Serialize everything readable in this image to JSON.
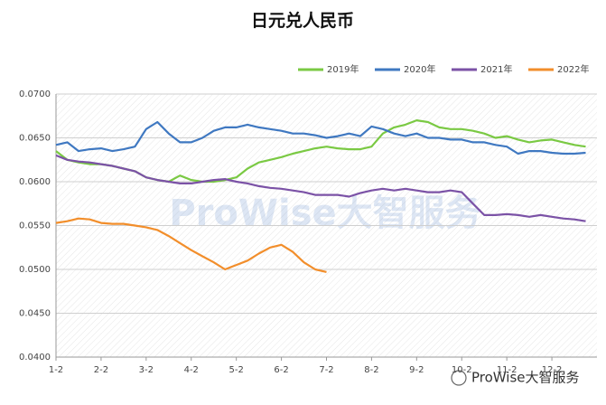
{
  "chart_data": {
    "type": "line",
    "title": "日元兑人民币",
    "categories": [
      "1-2",
      null,
      null,
      null,
      "2-2",
      null,
      null,
      null,
      "3-2",
      null,
      null,
      null,
      "4-2",
      null,
      null,
      null,
      "5-2",
      null,
      null,
      null,
      "6-2",
      null,
      null,
      null,
      "7-2",
      null,
      null,
      null,
      "8-2",
      null,
      null,
      null,
      "9-2",
      null,
      null,
      null,
      "10-2",
      null,
      null,
      null,
      "11-2",
      null,
      null,
      null,
      "12-2",
      null,
      null,
      null
    ],
    "series": [
      {
        "name": "2019年",
        "color": "#7ac943",
        "values": [
          0.0635,
          0.0625,
          0.0622,
          0.062,
          0.062,
          0.0618,
          0.0615,
          0.0612,
          0.0605,
          0.0602,
          0.06,
          0.0607,
          0.0602,
          0.06,
          0.06,
          0.0602,
          0.0605,
          0.0615,
          0.0622,
          0.0625,
          0.0628,
          0.0632,
          0.0635,
          0.0638,
          0.064,
          0.0638,
          0.0637,
          0.0637,
          0.064,
          0.0655,
          0.0662,
          0.0665,
          0.067,
          0.0668,
          0.0662,
          0.066,
          0.066,
          0.0658,
          0.0655,
          0.065,
          0.0652,
          0.0648,
          0.0645,
          0.0647,
          0.0648,
          0.0645,
          0.0642,
          0.064
        ]
      },
      {
        "name": "2020年",
        "color": "#3f78c1",
        "values": [
          0.0642,
          0.0645,
          0.0635,
          0.0637,
          0.0638,
          0.0635,
          0.0637,
          0.064,
          0.066,
          0.0668,
          0.0655,
          0.0645,
          0.0645,
          0.065,
          0.0658,
          0.0662,
          0.0662,
          0.0665,
          0.0662,
          0.066,
          0.0658,
          0.0655,
          0.0655,
          0.0653,
          0.065,
          0.0652,
          0.0655,
          0.0652,
          0.0663,
          0.066,
          0.0655,
          0.0652,
          0.0655,
          0.065,
          0.065,
          0.0648,
          0.0648,
          0.0645,
          0.0645,
          0.0642,
          0.064,
          0.0632,
          0.0635,
          0.0635,
          0.0633,
          0.0632,
          0.0632,
          0.0633
        ]
      },
      {
        "name": "2021年",
        "color": "#7b52a6",
        "values": [
          0.063,
          0.0625,
          0.0623,
          0.0622,
          0.062,
          0.0618,
          0.0615,
          0.0612,
          0.0605,
          0.0602,
          0.06,
          0.0598,
          0.0598,
          0.06,
          0.0602,
          0.0603,
          0.06,
          0.0598,
          0.0595,
          0.0593,
          0.0592,
          0.059,
          0.0588,
          0.0585,
          0.0585,
          0.0585,
          0.0583,
          0.0587,
          0.059,
          0.0592,
          0.059,
          0.0592,
          0.059,
          0.0588,
          0.0588,
          0.059,
          0.0588,
          0.0575,
          0.0562,
          0.0562,
          0.0563,
          0.0562,
          0.056,
          0.0562,
          0.056,
          0.0558,
          0.0557,
          0.0555
        ]
      },
      {
        "name": "2022年",
        "color": "#f28e2b",
        "values": [
          0.0553,
          0.0555,
          0.0558,
          0.0557,
          0.0553,
          0.0552,
          0.0552,
          0.055,
          0.0548,
          0.0545,
          0.0538,
          0.053,
          0.0522,
          0.0515,
          0.0508,
          0.05,
          0.0505,
          0.051,
          0.0518,
          0.0525,
          0.0528,
          0.052,
          0.0508,
          0.05,
          0.0497,
          null,
          null,
          null,
          null,
          null,
          null,
          null,
          null,
          null,
          null,
          null,
          null,
          null,
          null,
          null,
          null,
          null,
          null,
          null,
          null,
          null,
          null,
          null
        ]
      }
    ],
    "ylim": [
      0.04,
      0.07
    ],
    "yticks": [
      {
        "value": 0.04,
        "label": "0.0400"
      },
      {
        "value": 0.045,
        "label": "0.0450"
      },
      {
        "value": 0.05,
        "label": "0.0500"
      },
      {
        "value": 0.055,
        "label": "0.0550"
      },
      {
        "value": 0.06,
        "label": "0.0600"
      },
      {
        "value": 0.065,
        "label": "0.0650"
      },
      {
        "value": 0.07,
        "label": "0.0700"
      }
    ],
    "grid": true,
    "legend": "top-right"
  },
  "watermark": "ProWise大智服务",
  "footer_brand": "ProWise大智服务"
}
